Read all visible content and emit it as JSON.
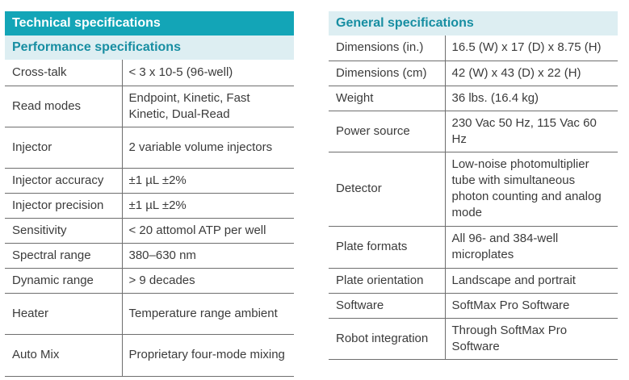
{
  "left": {
    "title": "Technical specifications",
    "subtitle": "Performance specifications",
    "rows": [
      {
        "label": "Cross-talk",
        "value": "< 3 x 10-5 (96-well)"
      },
      {
        "label": "Read modes",
        "value": "Endpoint, Kinetic, Fast Kinetic, Dual-Read"
      },
      {
        "label": "Injector",
        "value": "2 variable volume injectors"
      },
      {
        "label": "Injector accuracy",
        "value": "±1 µL ±2%"
      },
      {
        "label": "Injector precision",
        "value": "±1 µL ±2%"
      },
      {
        "label": "Sensitivity",
        "value": "< 20 attomol ATP per well"
      },
      {
        "label": "Spectral range",
        "value": "380–630 nm"
      },
      {
        "label": "Dynamic range",
        "value": "> 9 decades"
      },
      {
        "label": "Heater",
        "value": "Temperature range ambient"
      },
      {
        "label": "Auto Mix",
        "value": "Proprietary four-mode mixing"
      }
    ]
  },
  "right": {
    "title": "General specifications",
    "rows": [
      {
        "label": "Dimensions (in.)",
        "value": "16.5 (W) x 17 (D) x 8.75 (H)"
      },
      {
        "label": "Dimensions (cm)",
        "value": "42 (W) x 43 (D) x 22 (H)"
      },
      {
        "label": "Weight",
        "value": "36 lbs. (16.4 kg)"
      },
      {
        "label": "Power source",
        "value": "230 Vac 50 Hz, 115 Vac 60 Hz"
      },
      {
        "label": "Detector",
        "value": "Low-noise photomultiplier tube with simultaneous photon counting and analog mode"
      },
      {
        "label": "Plate formats",
        "value": "All 96- and 384-well microplates"
      },
      {
        "label": "Plate orientation",
        "value": "Landscape and portrait"
      },
      {
        "label": "Software",
        "value": "SoftMax Pro Software"
      },
      {
        "label": "Robot integration",
        "value": "Through SoftMax Pro Software"
      }
    ]
  },
  "colors": {
    "header_bg": "#13a5b7",
    "subheader_bg": "#ddeef2",
    "subheader_text": "#178ea2",
    "rule": "#6e6e6e"
  }
}
